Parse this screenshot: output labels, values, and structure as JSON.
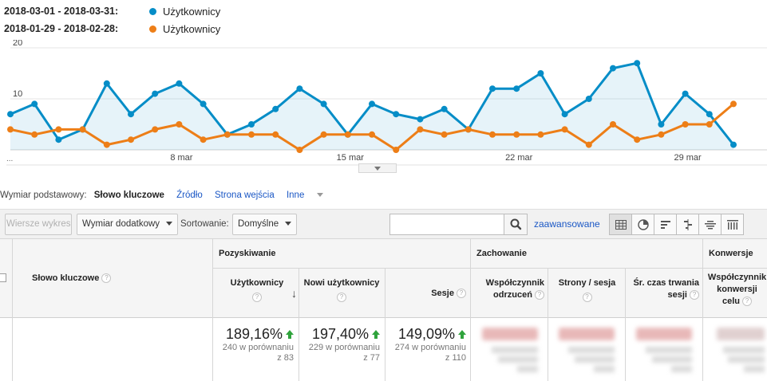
{
  "legend": [
    {
      "range": "2018-03-01 - 2018-03-31:",
      "series": "Użytkownicy",
      "color": "#058dc7"
    },
    {
      "range": "2018-01-29 - 2018-02-28:",
      "series": "Użytkownicy",
      "color": "#ed7e17"
    }
  ],
  "chart_data": {
    "type": "line",
    "title": "",
    "y_ticks": [
      "20",
      "10"
    ],
    "ylim": [
      0,
      20
    ],
    "x_ticks": [
      "8 mar",
      "15 mar",
      "22 mar",
      "29 mar"
    ],
    "x_tick_days": [
      8,
      15,
      22,
      29
    ],
    "x_start_label": "...",
    "grid": true,
    "series": [
      {
        "name": "Użytkownicy",
        "color": "#058dc7",
        "area": true,
        "x": [
          1,
          2,
          3,
          4,
          5,
          6,
          7,
          8,
          9,
          10,
          11,
          12,
          13,
          14,
          15,
          16,
          17,
          18,
          19,
          20,
          21,
          22,
          23,
          24,
          25,
          26,
          27,
          28,
          29,
          30,
          31
        ],
        "values": [
          7,
          9,
          2,
          4,
          13,
          7,
          11,
          13,
          9,
          3,
          5,
          8,
          12,
          9,
          3,
          9,
          7,
          6,
          8,
          4,
          12,
          12,
          15,
          7,
          10,
          16,
          17,
          5,
          11,
          7,
          1
        ]
      },
      {
        "name": "Użytkownicy",
        "color": "#ed7e17",
        "area": false,
        "x": [
          1,
          2,
          3,
          4,
          5,
          6,
          7,
          8,
          9,
          10,
          11,
          12,
          13,
          14,
          15,
          16,
          17,
          18,
          19,
          20,
          21,
          22,
          23,
          24,
          25,
          26,
          27,
          28,
          29,
          30,
          31
        ],
        "values": [
          4,
          3,
          4,
          4,
          1,
          2,
          4,
          5,
          2,
          3,
          3,
          3,
          0,
          3,
          3,
          3,
          0,
          4,
          3,
          4,
          3,
          3,
          3,
          4,
          1,
          5,
          2,
          3,
          5,
          5,
          9
        ]
      }
    ]
  },
  "dimension": {
    "label": "Wymiar podstawowy:",
    "active": "Słowo kluczowe",
    "links": [
      "Źródło",
      "Strona wejścia"
    ],
    "more": "Inne"
  },
  "toolbar": {
    "plot_rows": "Wiersze wykresu",
    "secondary_dim": "Wymiar dodatkowy",
    "sort_label": "Sortowanie:",
    "sort_value": "Domyślne",
    "search_placeholder": "",
    "advanced": "zaawansowane",
    "view_icons": [
      "table-view-icon",
      "pie-view-icon",
      "performance-view-icon",
      "comparison-view-icon",
      "term-cloud-view-icon",
      "pivot-view-icon"
    ]
  },
  "table": {
    "dim_header": "Słowo kluczowe",
    "groups": {
      "acquisition": "Pozyskiwanie",
      "behavior": "Zachowanie",
      "conversions": "Konwersje"
    },
    "columns": {
      "users": "Użytkownicy",
      "new_users": "Nowi użytkownicy",
      "sessions": "Sesje",
      "bounce_1": "Współczynnik",
      "bounce_2": "odrzuceń",
      "pages_per_session": "Strony / sesja",
      "avg_duration_1": "Śr. czas trwania",
      "avg_duration_2": "sesji",
      "conversion_1": "Współczynnik",
      "conversion_2": "konwersji",
      "conversion_3": "celu"
    },
    "sort_arrow": "↓",
    "totals": {
      "users": {
        "pct": "189,16%",
        "line1": "240 w porównaniu",
        "line2": "z 83"
      },
      "new_users": {
        "pct": "197,40%",
        "line1": "229 w porównaniu",
        "line2": "z 77"
      },
      "sessions": {
        "pct": "149,09%",
        "line1": "274 w porównaniu",
        "line2": "z 110"
      }
    }
  }
}
